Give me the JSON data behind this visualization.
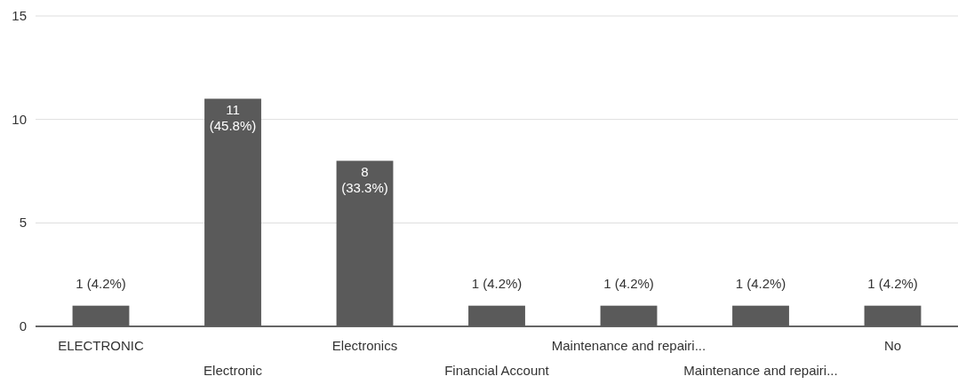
{
  "chart_data": {
    "type": "bar",
    "categories": [
      "ELECTRONIC",
      "Electronic",
      "Electronics",
      "Financial Account",
      "Maintenance and repairi...",
      "Maintenance and repairi...",
      "No"
    ],
    "values": [
      1,
      11,
      8,
      1,
      1,
      1,
      1
    ],
    "value_labels": [
      "1 (4.2%)",
      "11 (45.8%)",
      "8 (33.3%)",
      "1 (4.2%)",
      "1 (4.2%)",
      "1 (4.2%)",
      "1 (4.2%)"
    ],
    "color": "#5a5a5a",
    "ylim": [
      0,
      15
    ],
    "yticks": [
      0,
      5,
      10,
      15
    ],
    "grid": "y"
  }
}
